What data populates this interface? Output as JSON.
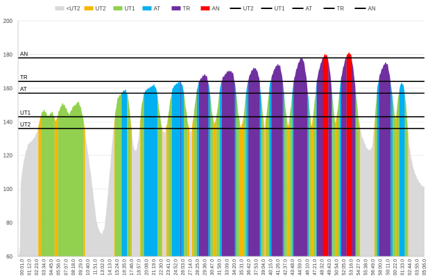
{
  "chart_data": {
    "type": "area",
    "ylim": [
      60,
      200
    ],
    "yticks": [
      60,
      80,
      100,
      120,
      140,
      160,
      180,
      200
    ],
    "colors": {
      "<UT2": "#d9d9d9",
      "UT2": "#f5b800",
      "UT1": "#92d050",
      "AT": "#00b0f0",
      "TR": "#7030a0",
      "AN": "#ff0000",
      "line": "#000000"
    },
    "legend": {
      "position": "top",
      "items": [
        {
          "label": "<UT2",
          "kind": "fill",
          "color": "#d9d9d9"
        },
        {
          "label": "UT2",
          "kind": "fill",
          "color": "#f5b800"
        },
        {
          "label": "UT1",
          "kind": "fill",
          "color": "#92d050"
        },
        {
          "label": "AT",
          "kind": "fill",
          "color": "#00b0f0"
        },
        {
          "label": "TR",
          "kind": "fill",
          "color": "#7030a0"
        },
        {
          "label": "AN",
          "kind": "fill",
          "color": "#ff0000"
        },
        {
          "label": "UT2",
          "kind": "line",
          "color": "#000000"
        },
        {
          "label": "UT1",
          "kind": "line",
          "color": "#000000"
        },
        {
          "label": "AT",
          "kind": "line",
          "color": "#000000"
        },
        {
          "label": "TR",
          "kind": "line",
          "color": "#000000"
        },
        {
          "label": "AN",
          "kind": "line",
          "color": "#000000"
        }
      ]
    },
    "thresholds": [
      {
        "label": "AN",
        "value": 178
      },
      {
        "label": "TR",
        "value": 164
      },
      {
        "label": "AT",
        "value": 157
      },
      {
        "label": "UT1",
        "value": 143
      },
      {
        "label": "UT2",
        "value": 136
      }
    ],
    "x_labels": [
      "00:01.0",
      "01:12.0",
      "02:23.0",
      "03:34.0",
      "04:45.0",
      "05:56.0",
      "07:07.0",
      "08:18.0",
      "09:29.0",
      "10:40.0",
      "11:51.0",
      "13:02.0",
      "14:13.0",
      "15:24.0",
      "16:35.0",
      "17:46.0",
      "18:57.0",
      "20:08.0",
      "21:19.0",
      "22:30.0",
      "23:41.0",
      "24:52.0",
      "26:03.0",
      "27:14.0",
      "28:25.0",
      "29:36.0",
      "30:47.0",
      "31:58.0",
      "33:09.0",
      "34:20.0",
      "35:31.0",
      "36:42.0",
      "37:53.0",
      "39:04.0",
      "40:15.0",
      "41:26.0",
      "42:37.0",
      "43:48.0",
      "44:59.0",
      "46:10.0",
      "47:21.0",
      "48:32.0",
      "49:43.0",
      "50:54.0",
      "52:05.0",
      "53:16.0",
      "54:27.0",
      "55:38.0",
      "56:49.0",
      "58:00.0",
      "59:11.0",
      "00:22.0",
      "01:33.0",
      "02:44.0",
      "03:55.0",
      "05:06.0"
    ],
    "heart_rate_keypoints": [
      [
        0,
        60
      ],
      [
        1.5,
        62
      ],
      [
        2,
        103
      ],
      [
        4,
        115
      ],
      [
        6,
        122
      ],
      [
        8,
        127
      ],
      [
        10,
        128
      ],
      [
        13,
        131
      ],
      [
        15,
        135
      ],
      [
        16,
        139
      ],
      [
        18,
        145
      ],
      [
        20,
        147
      ],
      [
        23,
        143
      ],
      [
        26,
        146
      ],
      [
        29,
        140
      ],
      [
        31,
        146
      ],
      [
        34,
        151
      ],
      [
        36,
        149
      ],
      [
        39,
        144
      ],
      [
        42,
        149
      ],
      [
        44,
        150
      ],
      [
        46,
        152
      ],
      [
        48,
        148
      ],
      [
        50,
        141
      ],
      [
        52,
        129
      ],
      [
        54,
        118
      ],
      [
        56,
        106
      ],
      [
        58,
        93
      ],
      [
        60,
        80
      ],
      [
        62,
        75
      ],
      [
        64,
        73
      ],
      [
        66,
        77
      ],
      [
        68,
        92
      ],
      [
        70,
        110
      ],
      [
        72,
        129
      ],
      [
        74,
        144
      ],
      [
        76,
        154
      ],
      [
        78,
        156
      ],
      [
        80,
        158
      ],
      [
        82,
        159
      ],
      [
        84,
        155
      ],
      [
        86,
        140
      ],
      [
        88,
        125
      ],
      [
        90,
        122
      ],
      [
        92,
        130
      ],
      [
        94,
        148
      ],
      [
        96,
        157
      ],
      [
        98,
        159
      ],
      [
        100,
        160
      ],
      [
        102,
        161
      ],
      [
        104,
        162
      ],
      [
        106,
        158
      ],
      [
        108,
        145
      ],
      [
        110,
        135
      ],
      [
        112,
        133
      ],
      [
        114,
        140
      ],
      [
        116,
        152
      ],
      [
        118,
        160
      ],
      [
        120,
        162
      ],
      [
        122,
        163
      ],
      [
        124,
        164
      ],
      [
        126,
        160
      ],
      [
        128,
        148
      ],
      [
        130,
        137
      ],
      [
        132,
        133
      ],
      [
        134,
        144
      ],
      [
        136,
        157
      ],
      [
        138,
        164
      ],
      [
        140,
        166
      ],
      [
        142,
        168
      ],
      [
        144,
        167
      ],
      [
        146,
        160
      ],
      [
        148,
        145
      ],
      [
        150,
        138
      ],
      [
        152,
        146
      ],
      [
        154,
        160
      ],
      [
        156,
        166
      ],
      [
        158,
        168
      ],
      [
        160,
        170
      ],
      [
        162,
        170
      ],
      [
        164,
        169
      ],
      [
        166,
        160
      ],
      [
        168,
        145
      ],
      [
        170,
        136
      ],
      [
        172,
        142
      ],
      [
        174,
        158
      ],
      [
        176,
        166
      ],
      [
        178,
        170
      ],
      [
        180,
        172
      ],
      [
        182,
        171
      ],
      [
        184,
        166
      ],
      [
        186,
        150
      ],
      [
        188,
        135
      ],
      [
        190,
        147
      ],
      [
        192,
        162
      ],
      [
        194,
        168
      ],
      [
        196,
        172
      ],
      [
        198,
        174
      ],
      [
        200,
        173
      ],
      [
        202,
        164
      ],
      [
        204,
        148
      ],
      [
        206,
        136
      ],
      [
        208,
        148
      ],
      [
        210,
        163
      ],
      [
        212,
        170
      ],
      [
        214,
        175
      ],
      [
        216,
        178
      ],
      [
        218,
        176
      ],
      [
        220,
        166
      ],
      [
        222,
        150
      ],
      [
        224,
        136
      ],
      [
        226,
        150
      ],
      [
        228,
        165
      ],
      [
        230,
        172
      ],
      [
        232,
        177
      ],
      [
        234,
        180
      ],
      [
        236,
        179
      ],
      [
        238,
        170
      ],
      [
        240,
        153
      ],
      [
        242,
        138
      ],
      [
        244,
        148
      ],
      [
        246,
        164
      ],
      [
        248,
        172
      ],
      [
        250,
        178
      ],
      [
        252,
        181
      ],
      [
        254,
        180
      ],
      [
        256,
        170
      ],
      [
        258,
        155
      ],
      [
        260,
        140
      ],
      [
        262,
        132
      ],
      [
        264,
        128
      ],
      [
        266,
        124
      ],
      [
        268,
        123
      ],
      [
        270,
        124
      ],
      [
        272,
        140
      ],
      [
        274,
        160
      ],
      [
        276,
        168
      ],
      [
        278,
        172
      ],
      [
        280,
        175
      ],
      [
        282,
        174
      ],
      [
        284,
        165
      ],
      [
        286,
        152
      ],
      [
        288,
        140
      ],
      [
        290,
        155
      ],
      [
        292,
        163
      ],
      [
        294,
        162
      ],
      [
        296,
        150
      ],
      [
        298,
        128
      ],
      [
        300,
        118
      ],
      [
        302,
        111
      ],
      [
        304,
        107
      ],
      [
        306,
        104
      ],
      [
        308,
        102
      ],
      [
        310,
        101
      ]
    ]
  }
}
